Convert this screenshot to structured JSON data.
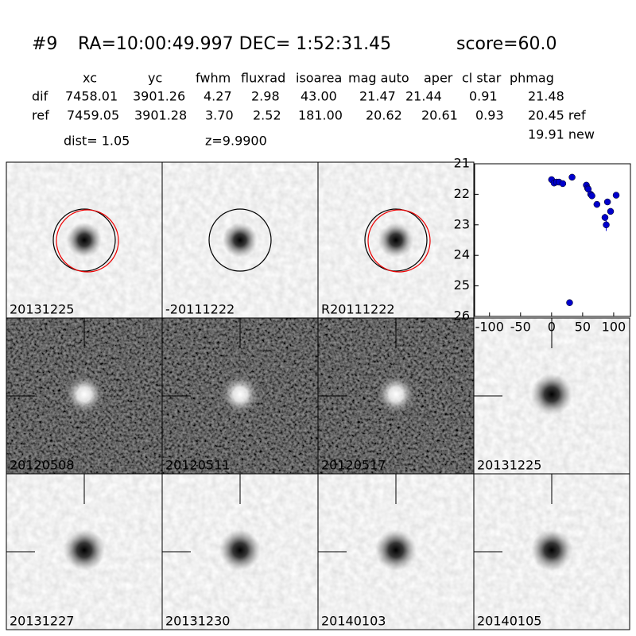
{
  "header": {
    "id": "#9",
    "coords": "RA=10:00:49.997 DEC= 1:52:31.45",
    "score": "score=60.0"
  },
  "table": {
    "columns": [
      "xc",
      "yc",
      "fwhm",
      "fluxrad",
      "isoarea",
      "mag auto",
      "aper",
      "cl star",
      "phmag"
    ],
    "rows": [
      [
        "dif",
        "7458.01",
        "3901.26",
        "4.27",
        "2.98",
        "43.00",
        "21.47",
        "21.44",
        "0.91",
        "21.48"
      ],
      [
        "ref",
        "7459.05",
        "3901.28",
        "3.70",
        "2.52",
        "181.00",
        "20.62",
        "20.61",
        "0.93",
        "20.45 ref"
      ]
    ],
    "extra": "19.91 new"
  },
  "dist": "dist=  1.05",
  "z": "z=9.9900",
  "stamps": [
    "20131225",
    "-20111222",
    "R20111222",
    "20120508",
    "20120511",
    "20120517",
    "20131225",
    "20131227",
    "20131230",
    "20140103",
    "20140105"
  ],
  "chart_data": {
    "type": "scatter",
    "color": "#0000cc",
    "x": [
      0,
      4,
      8,
      12,
      18,
      33,
      56,
      58,
      59,
      63,
      65,
      73,
      90,
      95,
      86,
      88,
      104,
      29
    ],
    "values": [
      21.52,
      21.63,
      21.6,
      21.6,
      21.65,
      21.44,
      21.7,
      21.8,
      21.83,
      22.0,
      22.05,
      22.33,
      22.25,
      22.56,
      22.76,
      23.0,
      22.03,
      25.55
    ],
    "errors": [
      0.05,
      0.05,
      0.05,
      0.05,
      0.05,
      0.04,
      0.06,
      0.06,
      0.06,
      0.07,
      0.07,
      0.08,
      0.08,
      0.1,
      0.12,
      0.2,
      0.07,
      0.1
    ],
    "xlim": [
      -124,
      127
    ],
    "ylim": [
      26,
      21
    ],
    "xticks": [
      -100,
      -50,
      0,
      50,
      100
    ],
    "yticks": [
      21,
      22,
      23,
      24,
      25,
      26
    ]
  }
}
